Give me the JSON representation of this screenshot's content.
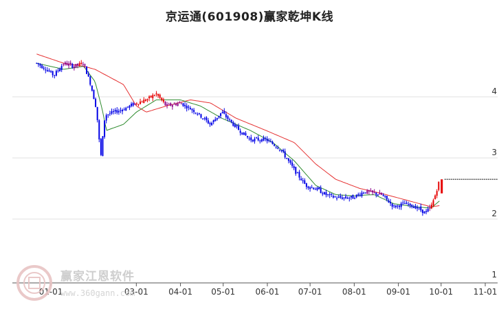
{
  "chart_data": {
    "type": "candlestick",
    "title": "京运通(601908)赢家乾坤K线",
    "x_ticks": [
      "01-01",
      "03-01",
      "04-01",
      "05-01",
      "06-01",
      "07-01",
      "08-01",
      "09-01",
      "10-01",
      "11-01"
    ],
    "y_ticks": [
      1,
      2,
      3,
      4
    ],
    "ylim": [
      1,
      4.85
    ],
    "grid": "horizontal",
    "colors": {
      "up": "#e60000",
      "down": "#0000e6",
      "neutral": "#8b008b",
      "ma_short": "#2e8b2e",
      "ma_long": "#e53030",
      "last_price_line": "#000000"
    },
    "price_path": [
      [
        "2023-12-22",
        4.55
      ],
      [
        "2023-12-29",
        4.45
      ],
      [
        "2024-01-03",
        4.35
      ],
      [
        "2024-01-10",
        4.55
      ],
      [
        "2024-01-17",
        4.5
      ],
      [
        "2024-01-24",
        4.55
      ],
      [
        "2024-01-29",
        4.2
      ],
      [
        "2024-02-02",
        3.8
      ],
      [
        "2024-02-05",
        3.0
      ],
      [
        "2024-02-08",
        3.7
      ],
      [
        "2024-02-21",
        3.8
      ],
      [
        "2024-03-01",
        3.9
      ],
      [
        "2024-03-08",
        3.95
      ],
      [
        "2024-03-15",
        4.05
      ],
      [
        "2024-03-22",
        3.85
      ],
      [
        "2024-04-01",
        3.9
      ],
      [
        "2024-04-12",
        3.75
      ],
      [
        "2024-04-22",
        3.55
      ],
      [
        "2024-04-30",
        3.75
      ],
      [
        "2024-05-10",
        3.5
      ],
      [
        "2024-05-20",
        3.3
      ],
      [
        "2024-05-31",
        3.3
      ],
      [
        "2024-06-10",
        3.15
      ],
      [
        "2024-06-20",
        2.8
      ],
      [
        "2024-06-28",
        2.55
      ],
      [
        "2024-07-05",
        2.5
      ],
      [
        "2024-07-12",
        2.4
      ],
      [
        "2024-07-19",
        2.35
      ],
      [
        "2024-07-31",
        2.35
      ],
      [
        "2024-08-08",
        2.45
      ],
      [
        "2024-08-20",
        2.4
      ],
      [
        "2024-08-29",
        2.2
      ],
      [
        "2024-09-05",
        2.25
      ],
      [
        "2024-09-13",
        2.2
      ],
      [
        "2024-09-20",
        2.1
      ],
      [
        "2024-09-24",
        2.2
      ],
      [
        "2024-09-27",
        2.4
      ],
      [
        "2024-09-30",
        2.65
      ]
    ],
    "last_close": 2.65,
    "ma_short_path": [
      [
        "2023-12-22",
        4.55
      ],
      [
        "2024-01-10",
        4.45
      ],
      [
        "2024-01-24",
        4.5
      ],
      [
        "2024-02-01",
        4.25
      ],
      [
        "2024-02-06",
        3.8
      ],
      [
        "2024-02-09",
        3.45
      ],
      [
        "2024-02-21",
        3.55
      ],
      [
        "2024-03-01",
        3.75
      ],
      [
        "2024-03-15",
        3.95
      ],
      [
        "2024-04-01",
        3.95
      ],
      [
        "2024-04-15",
        3.85
      ],
      [
        "2024-04-30",
        3.65
      ],
      [
        "2024-05-20",
        3.45
      ],
      [
        "2024-06-05",
        3.25
      ],
      [
        "2024-06-20",
        2.95
      ],
      [
        "2024-07-05",
        2.55
      ],
      [
        "2024-07-19",
        2.4
      ],
      [
        "2024-07-31",
        2.38
      ],
      [
        "2024-08-15",
        2.4
      ],
      [
        "2024-08-29",
        2.25
      ],
      [
        "2024-09-13",
        2.2
      ],
      [
        "2024-09-24",
        2.18
      ],
      [
        "2024-09-30",
        2.3
      ]
    ],
    "ma_long_path": [
      [
        "2023-12-22",
        4.7
      ],
      [
        "2024-01-10",
        4.55
      ],
      [
        "2024-01-24",
        4.5
      ],
      [
        "2024-02-01",
        4.45
      ],
      [
        "2024-02-21",
        4.2
      ],
      [
        "2024-03-01",
        3.85
      ],
      [
        "2024-03-08",
        3.75
      ],
      [
        "2024-03-22",
        3.85
      ],
      [
        "2024-04-08",
        3.95
      ],
      [
        "2024-04-22",
        3.9
      ],
      [
        "2024-05-10",
        3.65
      ],
      [
        "2024-05-31",
        3.45
      ],
      [
        "2024-06-20",
        3.25
      ],
      [
        "2024-07-05",
        2.9
      ],
      [
        "2024-07-19",
        2.65
      ],
      [
        "2024-08-05",
        2.5
      ],
      [
        "2024-08-20",
        2.42
      ],
      [
        "2024-09-05",
        2.32
      ],
      [
        "2024-09-24",
        2.2
      ],
      [
        "2024-09-30",
        2.22
      ]
    ]
  },
  "watermark": {
    "name": "赢家江恩软件",
    "url": "www.360gann.com"
  }
}
